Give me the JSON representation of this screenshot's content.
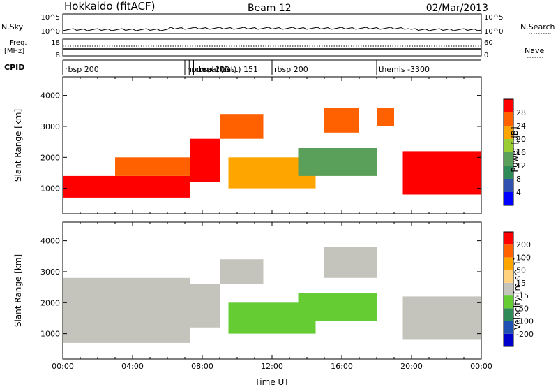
{
  "header": {
    "title": "Hokkaido (fitACF)",
    "beam": "Beam 12",
    "date": "02/Mar/2013"
  },
  "strip_labels": {
    "nsky": "N.Sky",
    "freq_line1": "Freq.",
    "freq_line2": "[MHz]",
    "cpid": "CPID",
    "nsearch": "N.Search",
    "nave": "Nave"
  },
  "strip_ticks": {
    "nsky_top": "10^5",
    "nsky_bottom": "10^0",
    "freq_top": "18",
    "freq_bottom": "8",
    "nave_top": "60",
    "nave_bottom": "0"
  },
  "cpid_segments": [
    {
      "hour": 0.0,
      "label": "rbsp 200"
    },
    {
      "hour": 7.0,
      "label": "normal (fast)"
    },
    {
      "hour": 7.25,
      "label": "normal (fast) 151"
    },
    {
      "hour": 7.5,
      "label": "rbsp 200"
    },
    {
      "hour": 12.0,
      "label": "rbsp 200"
    },
    {
      "hour": 18.0,
      "label": "themis -3300"
    }
  ],
  "colors": {
    "grey_scatter": "#c4c4bc",
    "power_scale": [
      "#0000ff",
      "#3050b0",
      "#2e8b57",
      "#5aa05a",
      "#9acd32",
      "#ffa500",
      "#ff6000",
      "#ff0000"
    ],
    "velocity_scale": [
      "#ff0000",
      "#ff6000",
      "#ffa500",
      "#ffd27f",
      "#c4c4bc",
      "#66cc33",
      "#2e8b57",
      "#1e50b4",
      "#0000cc"
    ]
  },
  "chart_data": [
    {
      "type": "heatmap",
      "name": "Power",
      "xlabel": "",
      "ylabel": "Slant Range [km]",
      "xlim": [
        0,
        24
      ],
      "ylim": [
        180,
        4600
      ],
      "yticks": [
        1000,
        2000,
        3000,
        4000
      ],
      "colorbar": {
        "label": "Power [dB]",
        "ticks": [
          "4",
          "8",
          "12",
          "16",
          "20",
          "24",
          "28"
        ],
        "range": [
          0,
          32
        ]
      },
      "echo_regions": [
        {
          "t0": 0.0,
          "t1": 7.3,
          "r0": 700,
          "r1": 1400,
          "value": 28
        },
        {
          "t0": 3.0,
          "t1": 7.3,
          "r0": 1400,
          "r1": 2000,
          "value": 24
        },
        {
          "t0": 7.3,
          "t1": 9.0,
          "r0": 1200,
          "r1": 2600,
          "value": 28
        },
        {
          "t0": 9.0,
          "t1": 11.5,
          "r0": 2600,
          "r1": 3400,
          "value": 26
        },
        {
          "t0": 9.5,
          "t1": 14.5,
          "r0": 1000,
          "r1": 2000,
          "value": 22
        },
        {
          "t0": 13.5,
          "t1": 18.0,
          "r0": 1400,
          "r1": 2300,
          "value": 12
        },
        {
          "t0": 15.0,
          "t1": 17.0,
          "r0": 2800,
          "r1": 3600,
          "value": 26
        },
        {
          "t0": 18.0,
          "t1": 19.0,
          "r0": 3000,
          "r1": 3600,
          "value": 26
        },
        {
          "t0": 19.5,
          "t1": 24.0,
          "r0": 800,
          "r1": 2200,
          "value": 28
        }
      ]
    },
    {
      "type": "heatmap",
      "name": "Velocity",
      "xlabel": "Time UT",
      "ylabel": "Slant Range [km]",
      "xlim": [
        0,
        24
      ],
      "ylim": [
        180,
        4600
      ],
      "xtick_labels": [
        "00:00",
        "04:00",
        "08:00",
        "12:00",
        "16:00",
        "20:00",
        "00:00"
      ],
      "yticks": [
        1000,
        2000,
        3000,
        4000
      ],
      "colorbar": {
        "label": "Velocity [m s^-1]",
        "ticks": [
          "200",
          "100",
          "50",
          "15",
          "-15",
          "-50",
          "-100",
          "-200"
        ],
        "range": [
          -250,
          250
        ]
      },
      "echo_regions": [
        {
          "t0": 0.0,
          "t1": 7.3,
          "r0": 700,
          "r1": 2800,
          "value": 0
        },
        {
          "t0": 7.3,
          "t1": 9.0,
          "r0": 1200,
          "r1": 2600,
          "value": 0
        },
        {
          "t0": 9.0,
          "t1": 11.5,
          "r0": 2600,
          "r1": 3400,
          "value": 0
        },
        {
          "t0": 9.5,
          "t1": 14.5,
          "r0": 1000,
          "r1": 2000,
          "value": 40
        },
        {
          "t0": 13.5,
          "t1": 18.0,
          "r0": 1400,
          "r1": 2300,
          "value": 40
        },
        {
          "t0": 15.0,
          "t1": 18.0,
          "r0": 2800,
          "r1": 3800,
          "value": 0
        },
        {
          "t0": 19.5,
          "t1": 24.0,
          "r0": 800,
          "r1": 2200,
          "value": 0
        }
      ]
    }
  ]
}
